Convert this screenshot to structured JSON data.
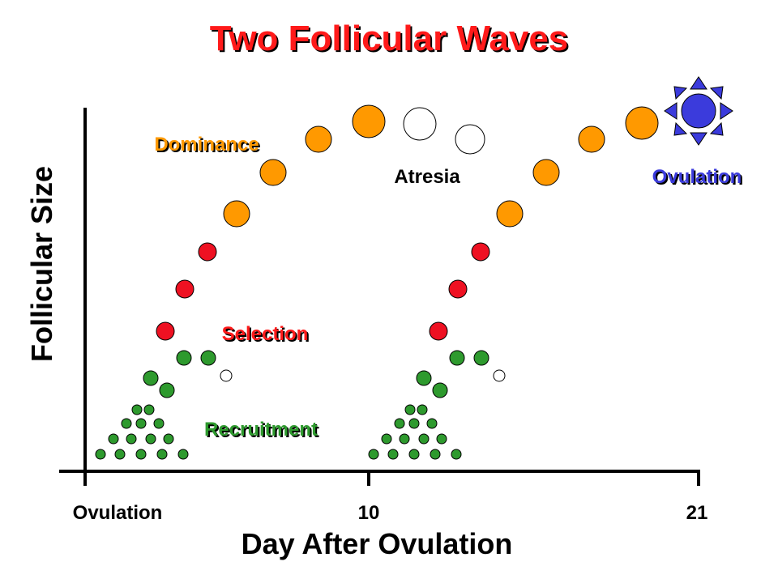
{
  "title": "Two Follicular Waves",
  "labels": {
    "dominance": "Dominance",
    "atresia": "Atresia",
    "ovulation": "Ovulation",
    "selection": "Selection",
    "recruitment": "Recruitment"
  },
  "y_axis": {
    "title": "Follicular Size"
  },
  "x_axis": {
    "title": "Day After Ovulation",
    "ticks": [
      "Ovulation",
      "10",
      "21"
    ]
  }
}
